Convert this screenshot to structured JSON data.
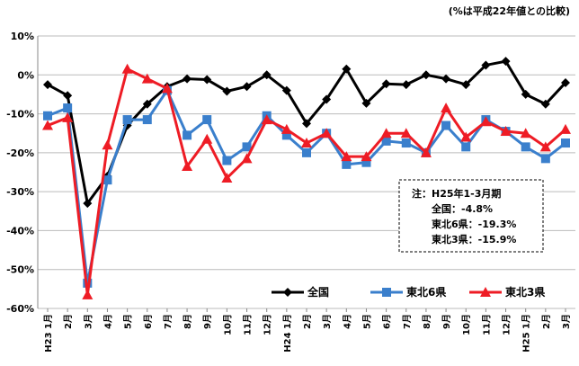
{
  "chart_data": {
    "type": "line",
    "subtitle": "(%は平成22年値との比較)",
    "categories": [
      "H23 1月",
      "2月",
      "3月",
      "4月",
      "5月",
      "6月",
      "7月",
      "8月",
      "9月",
      "10月",
      "11月",
      "12月",
      "H24 1月",
      "2月",
      "3月",
      "4月",
      "5月",
      "6月",
      "7月",
      "8月",
      "9月",
      "10月",
      "11月",
      "12月",
      "H25 1月",
      "2月",
      "3月"
    ],
    "series": [
      {
        "name": "全国",
        "color": "#000000",
        "marker": "diamond",
        "values": [
          -2.5,
          -5.3,
          -33,
          -26,
          -13,
          -7.5,
          -3,
          -1,
          -1.2,
          -4.2,
          -3,
          0,
          -4,
          -12.5,
          -6.3,
          1.5,
          -7.3,
          -2.3,
          -2.5,
          0,
          -1,
          -2.5,
          2.5,
          3.5,
          -5,
          -7.5,
          -2
        ]
      },
      {
        "name": "東北6県",
        "color": "#3a7fcc",
        "marker": "square",
        "values": [
          -10.5,
          -8.5,
          -53.5,
          -27,
          -11.5,
          -11.5,
          -4,
          -15.5,
          -11.5,
          -22,
          -18.5,
          -10.5,
          -15.5,
          -20,
          -15,
          -23,
          -22.5,
          -17,
          -17.5,
          -20,
          -13,
          -18.5,
          -11.5,
          -14.5,
          -18.5,
          -21.5,
          -17.5
        ]
      },
      {
        "name": "東北3県",
        "color": "#ee1c25",
        "marker": "triangle",
        "values": [
          -13,
          -11,
          -56.5,
          -18,
          1.5,
          -1,
          -3.5,
          -23.5,
          -16.5,
          -26.5,
          -21.5,
          -11.5,
          -14,
          -17.5,
          -15,
          -21,
          -21,
          -15,
          -15,
          -20,
          -8.5,
          -16,
          -12,
          -14.5,
          -15,
          -18.5,
          -14
        ]
      }
    ],
    "ylim": [
      -60,
      10
    ],
    "yticks": [
      {
        "value": -60,
        "label": "-60%"
      },
      {
        "value": -50,
        "label": "-50%"
      },
      {
        "value": -40,
        "label": "-40%"
      },
      {
        "value": -30,
        "label": "-30%"
      },
      {
        "value": -20,
        "label": "-20%"
      },
      {
        "value": -10,
        "label": "-10%"
      },
      {
        "value": 0,
        "label": "0%"
      },
      {
        "value": 10,
        "label": "10%"
      }
    ],
    "grid": true,
    "annotation": [
      "注：H25年1-3月期",
      "全国：-4.8%",
      "東北6県：-19.3%",
      "東北3県：-15.9%"
    ]
  }
}
